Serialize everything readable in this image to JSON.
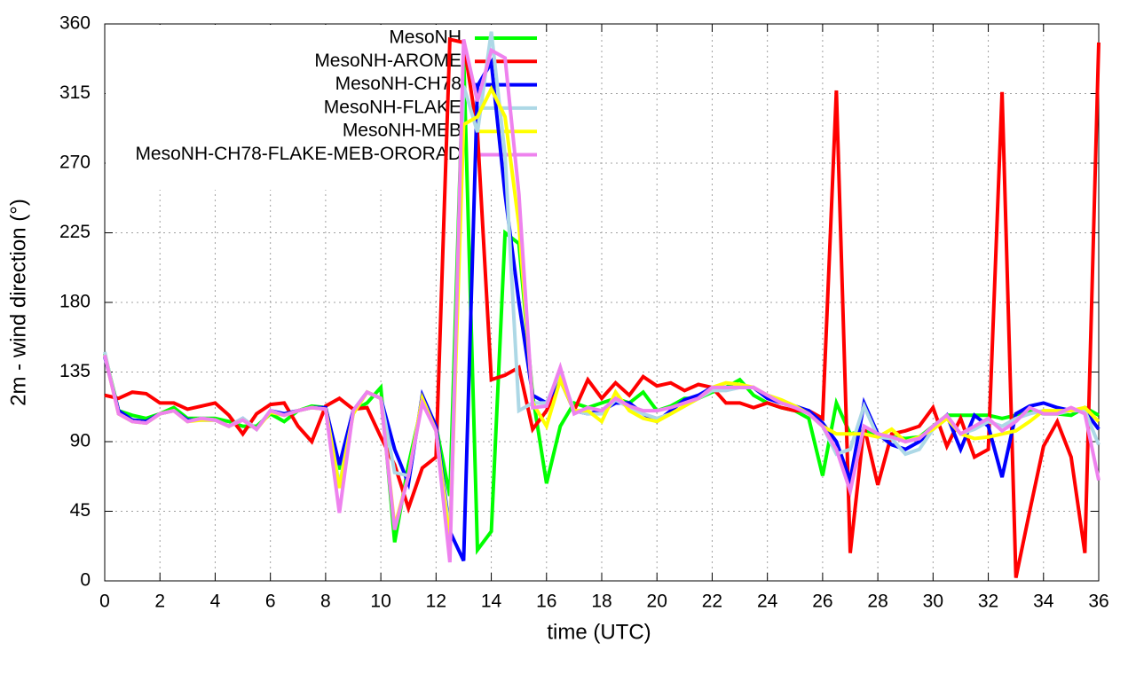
{
  "chart_data": {
    "type": "line",
    "xlabel": "time (UTC)",
    "ylabel": "2m - wind direction (°)",
    "xlim": [
      0,
      36
    ],
    "xticks": [
      0,
      2,
      4,
      6,
      8,
      10,
      12,
      14,
      16,
      18,
      20,
      22,
      24,
      26,
      28,
      30,
      32,
      34,
      36
    ],
    "ylim": [
      0,
      360
    ],
    "yticks": [
      0,
      45,
      90,
      135,
      180,
      225,
      270,
      315,
      360
    ],
    "grid": true,
    "legend": "top-left",
    "x": [
      0,
      0.5,
      1,
      1.5,
      2,
      2.5,
      3,
      3.5,
      4,
      4.5,
      5,
      5.5,
      6,
      6.5,
      7,
      7.5,
      8,
      8.5,
      9,
      9.5,
      10,
      10.5,
      11,
      11.5,
      12,
      12.5,
      13,
      13.5,
      14,
      14.5,
      15,
      15.5,
      16,
      16.5,
      17,
      17.5,
      18,
      18.5,
      19,
      19.5,
      20,
      20.5,
      21,
      21.5,
      22,
      22.5,
      23,
      23.5,
      24,
      24.5,
      25,
      25.5,
      26,
      26.5,
      27,
      27.5,
      28,
      28.5,
      29,
      29.5,
      30,
      30.5,
      31,
      31.5,
      32,
      32.5,
      33,
      33.5,
      34,
      34.5,
      35,
      35.5,
      36
    ],
    "series": [
      {
        "name": "MesoNH",
        "color": "#00ff00",
        "values": [
          147,
          110,
          107,
          105,
          108,
          112,
          105,
          105,
          105,
          103,
          100,
          100,
          108,
          103,
          110,
          113,
          112,
          72,
          110,
          115,
          125,
          25,
          75,
          115,
          100,
          55,
          340,
          20,
          32,
          225,
          218,
          120,
          63,
          100,
          115,
          112,
          115,
          118,
          115,
          122,
          110,
          113,
          118,
          118,
          122,
          125,
          130,
          120,
          115,
          112,
          110,
          105,
          68,
          115,
          95,
          97,
          95,
          93,
          92,
          93,
          100,
          107,
          107,
          107,
          107,
          105,
          107,
          110,
          108,
          108,
          107,
          112,
          107
        ]
      },
      {
        "name": "MesoNH-AROME",
        "color": "#ff0000",
        "values": [
          120,
          118,
          122,
          121,
          115,
          115,
          111,
          113,
          115,
          107,
          95,
          108,
          114,
          115,
          100,
          90,
          113,
          118,
          111,
          112,
          93,
          75,
          47,
          73,
          80,
          350,
          348,
          290,
          130,
          133,
          138,
          98,
          110,
          130,
          110,
          130,
          118,
          128,
          120,
          132,
          126,
          128,
          123,
          127,
          125,
          115,
          115,
          112,
          115,
          112,
          110,
          110,
          105,
          317,
          18,
          100,
          62,
          95,
          97,
          100,
          112,
          87,
          105,
          80,
          85,
          316,
          2,
          45,
          87,
          103,
          80,
          18,
          348
        ]
      },
      {
        "name": "MesoNH-CH78",
        "color": "#0000ff",
        "values": [
          145,
          110,
          104,
          103,
          108,
          110,
          104,
          104,
          104,
          100,
          105,
          98,
          110,
          108,
          110,
          112,
          112,
          75,
          110,
          122,
          118,
          85,
          63,
          120,
          100,
          32,
          13,
          320,
          335,
          250,
          180,
          120,
          115,
          130,
          110,
          108,
          110,
          115,
          115,
          108,
          103,
          110,
          117,
          120,
          125,
          125,
          125,
          125,
          118,
          115,
          113,
          110,
          102,
          90,
          65,
          115,
          95,
          88,
          85,
          90,
          98,
          107,
          85,
          107,
          100,
          67,
          108,
          113,
          115,
          112,
          110,
          110,
          98
        ]
      },
      {
        "name": "MesoNH-FLAKE",
        "color": "#add8e6",
        "values": [
          148,
          108,
          103,
          102,
          108,
          110,
          103,
          105,
          104,
          100,
          105,
          98,
          110,
          107,
          110,
          112,
          111,
          62,
          108,
          122,
          118,
          70,
          68,
          118,
          97,
          30,
          320,
          290,
          355,
          275,
          110,
          115,
          115,
          135,
          110,
          108,
          108,
          117,
          112,
          108,
          105,
          108,
          113,
          118,
          123,
          123,
          125,
          125,
          120,
          117,
          113,
          108,
          100,
          82,
          85,
          113,
          93,
          92,
          82,
          85,
          98,
          105,
          95,
          98,
          103,
          100,
          105,
          108,
          110,
          108,
          110,
          110,
          88
        ]
      },
      {
        "name": "MesoNH-MEB",
        "color": "#ffff00",
        "values": [
          146,
          108,
          103,
          102,
          108,
          110,
          103,
          104,
          104,
          100,
          104,
          98,
          109,
          107,
          110,
          112,
          111,
          60,
          108,
          122,
          118,
          35,
          68,
          118,
          97,
          25,
          295,
          300,
          318,
          300,
          230,
          115,
          100,
          130,
          110,
          110,
          103,
          122,
          110,
          105,
          103,
          108,
          113,
          118,
          125,
          128,
          127,
          125,
          120,
          117,
          113,
          108,
          100,
          95,
          95,
          95,
          93,
          98,
          90,
          93,
          98,
          105,
          95,
          92,
          93,
          95,
          97,
          103,
          110,
          110,
          110,
          112,
          103
        ]
      },
      {
        "name": "MesoNH-CH78-FLAKE-MEB-ORORAD",
        "color": "#ee82ee",
        "values": [
          146,
          108,
          103,
          102,
          108,
          110,
          103,
          105,
          104,
          100,
          104,
          98,
          110,
          107,
          110,
          112,
          111,
          44,
          110,
          122,
          118,
          33,
          68,
          115,
          97,
          12,
          350,
          310,
          343,
          338,
          250,
          112,
          113,
          138,
          108,
          112,
          110,
          118,
          113,
          110,
          110,
          112,
          115,
          118,
          125,
          125,
          125,
          125,
          120,
          115,
          112,
          108,
          100,
          85,
          58,
          100,
          95,
          93,
          90,
          92,
          100,
          107,
          95,
          100,
          105,
          97,
          103,
          112,
          108,
          108,
          112,
          108,
          65
        ]
      }
    ]
  }
}
